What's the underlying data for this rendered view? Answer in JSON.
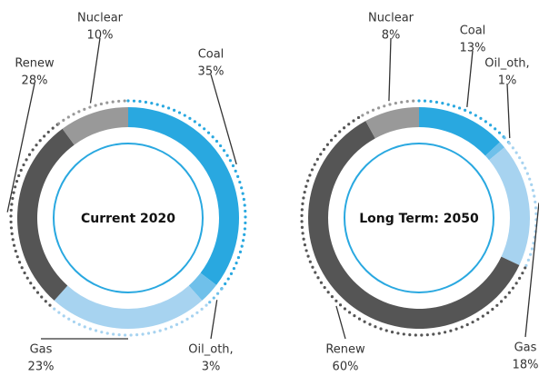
{
  "chart_data": [
    {
      "type": "pie",
      "title": "Current 2020",
      "categories": [
        "Coal",
        "Oil_oth,",
        "Gas",
        "Renew",
        "Nuclear"
      ],
      "values": [
        35,
        3,
        23,
        28,
        10
      ],
      "value_labels": [
        "35%",
        "3%",
        "23%",
        "28%",
        "10%"
      ],
      "colors": [
        "#29a8e0",
        "#6fc0ea",
        "#a7d3f0",
        "#555555",
        "#999999"
      ]
    },
    {
      "type": "pie",
      "title": "Long Term: 2050",
      "categories": [
        "Coal",
        "Oil_oth,",
        "Gas",
        "Renew",
        "Nuclear"
      ],
      "values": [
        13,
        1,
        18,
        60,
        8
      ],
      "value_labels": [
        "13%",
        "1%",
        "18%",
        "60%",
        "8%"
      ],
      "colors": [
        "#29a8e0",
        "#6fc0ea",
        "#a7d3f0",
        "#555555",
        "#999999"
      ]
    }
  ]
}
